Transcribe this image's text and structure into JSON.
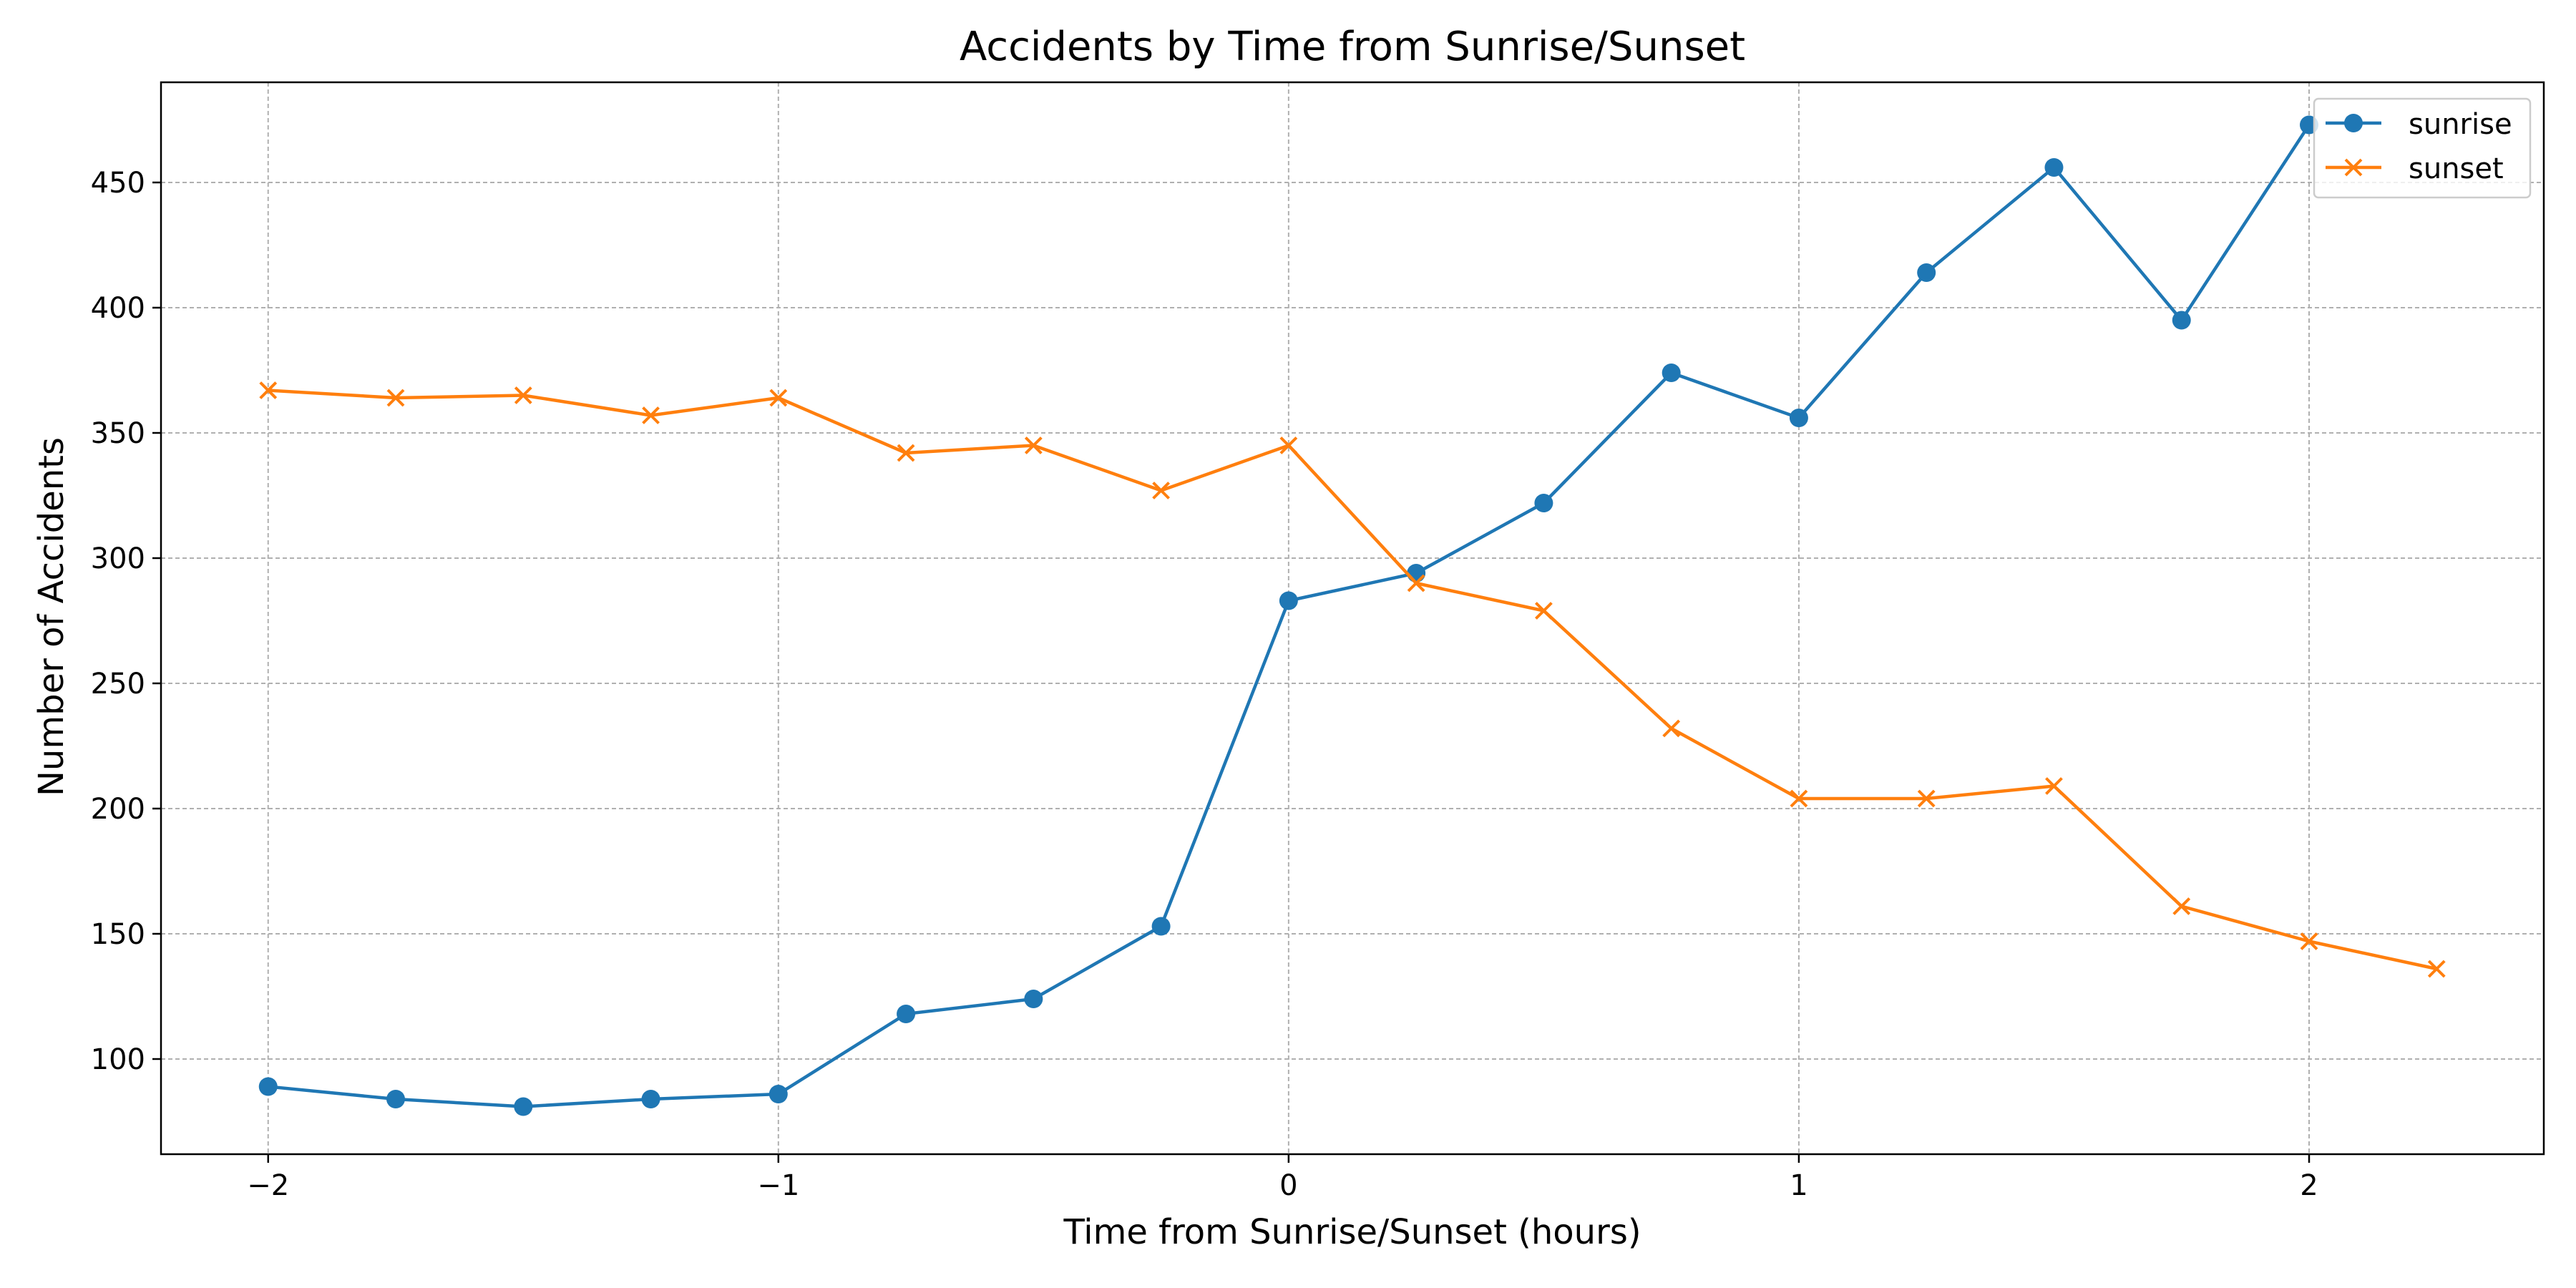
{
  "chart_data": {
    "type": "line",
    "title": "Accidents by Time from Sunrise/Sunset",
    "xlabel": "Time from Sunrise/Sunset (hours)",
    "ylabel": "Number of Accidents",
    "xlim": [
      -2.21,
      2.46
    ],
    "ylim": [
      62,
      490
    ],
    "xticks": [
      -2,
      -1,
      0,
      1,
      2
    ],
    "xtick_labels": [
      "−2",
      "−1",
      "0",
      "1",
      "2"
    ],
    "yticks": [
      100,
      150,
      200,
      250,
      300,
      350,
      400,
      450
    ],
    "ytick_labels": [
      "100",
      "150",
      "200",
      "250",
      "300",
      "350",
      "400",
      "450"
    ],
    "grid": true,
    "legend_position": "top-right",
    "series": [
      {
        "name": "sunrise",
        "color": "#1f77b4",
        "marker": "circle",
        "x": [
          -2,
          -1.75,
          -1.5,
          -1.25,
          -1,
          -0.75,
          -0.5,
          -0.25,
          0,
          0.25,
          0.5,
          0.75,
          1,
          1.25,
          1.5,
          1.75,
          2
        ],
        "values": [
          89,
          84,
          81,
          84,
          86,
          118,
          124,
          153,
          283,
          294,
          322,
          374,
          356,
          414,
          456,
          395,
          473
        ]
      },
      {
        "name": "sunset",
        "color": "#ff7f0e",
        "marker": "x",
        "x": [
          -2,
          -1.75,
          -1.5,
          -1.25,
          -1,
          -0.75,
          -0.5,
          -0.25,
          0,
          0.25,
          0.5,
          0.75,
          1,
          1.25,
          1.5,
          1.75,
          2,
          2.25
        ],
        "values": [
          367,
          364,
          365,
          357,
          364,
          342,
          345,
          327,
          345,
          290,
          279,
          232,
          204,
          204,
          209,
          161,
          147,
          136
        ]
      }
    ]
  }
}
